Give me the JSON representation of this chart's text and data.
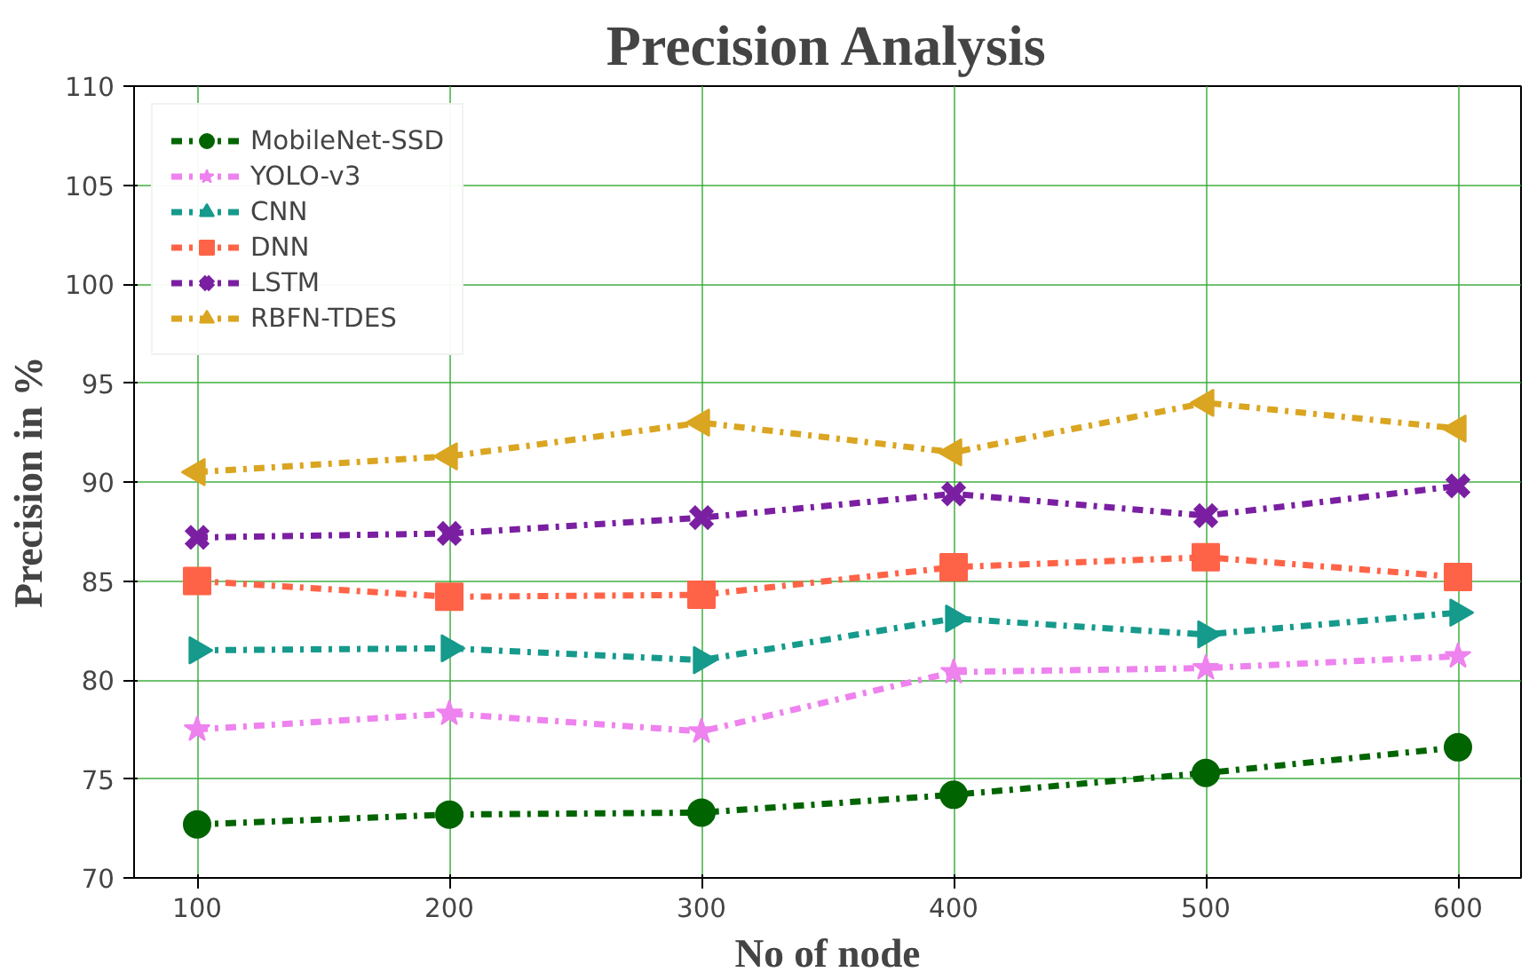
{
  "chart_data": {
    "type": "line",
    "title": "Precision Analysis",
    "xlabel": "No of node",
    "ylabel": "Precision in %",
    "x": [
      100,
      200,
      300,
      400,
      500,
      600
    ],
    "xlim": [
      75,
      625
    ],
    "xticks": [
      100,
      200,
      300,
      400,
      500,
      600
    ],
    "ylim": [
      70,
      110
    ],
    "yticks": [
      70,
      75,
      80,
      85,
      90,
      95,
      100,
      105,
      110
    ],
    "grid": true,
    "legend": "top left",
    "line_style": "dashdot",
    "series": [
      {
        "name": "MobileNet-SSD",
        "color": "#006400",
        "marker": "circle",
        "values": [
          72.7,
          73.2,
          73.3,
          74.2,
          75.3,
          76.6
        ]
      },
      {
        "name": "YOLO-v3",
        "color": "#ee82ee",
        "marker": "star",
        "values": [
          77.5,
          78.3,
          77.4,
          80.4,
          80.6,
          81.2
        ]
      },
      {
        "name": "CNN",
        "color": "#159a8c",
        "marker": "triangle",
        "values": [
          81.5,
          81.6,
          81.0,
          83.1,
          82.3,
          83.4
        ]
      },
      {
        "name": "DNN",
        "color": "#ff6347",
        "marker": "square",
        "values": [
          85.0,
          84.2,
          84.3,
          85.7,
          86.2,
          85.2
        ]
      },
      {
        "name": "LSTM",
        "color": "#7b1fa2",
        "marker": "cross",
        "values": [
          87.2,
          87.4,
          88.2,
          89.4,
          88.3,
          89.8
        ]
      },
      {
        "name": "RBFN-TDES",
        "color": "#daa520",
        "marker": "triangle",
        "values": [
          90.5,
          91.3,
          93.0,
          91.5,
          94.0,
          92.7
        ]
      }
    ]
  }
}
